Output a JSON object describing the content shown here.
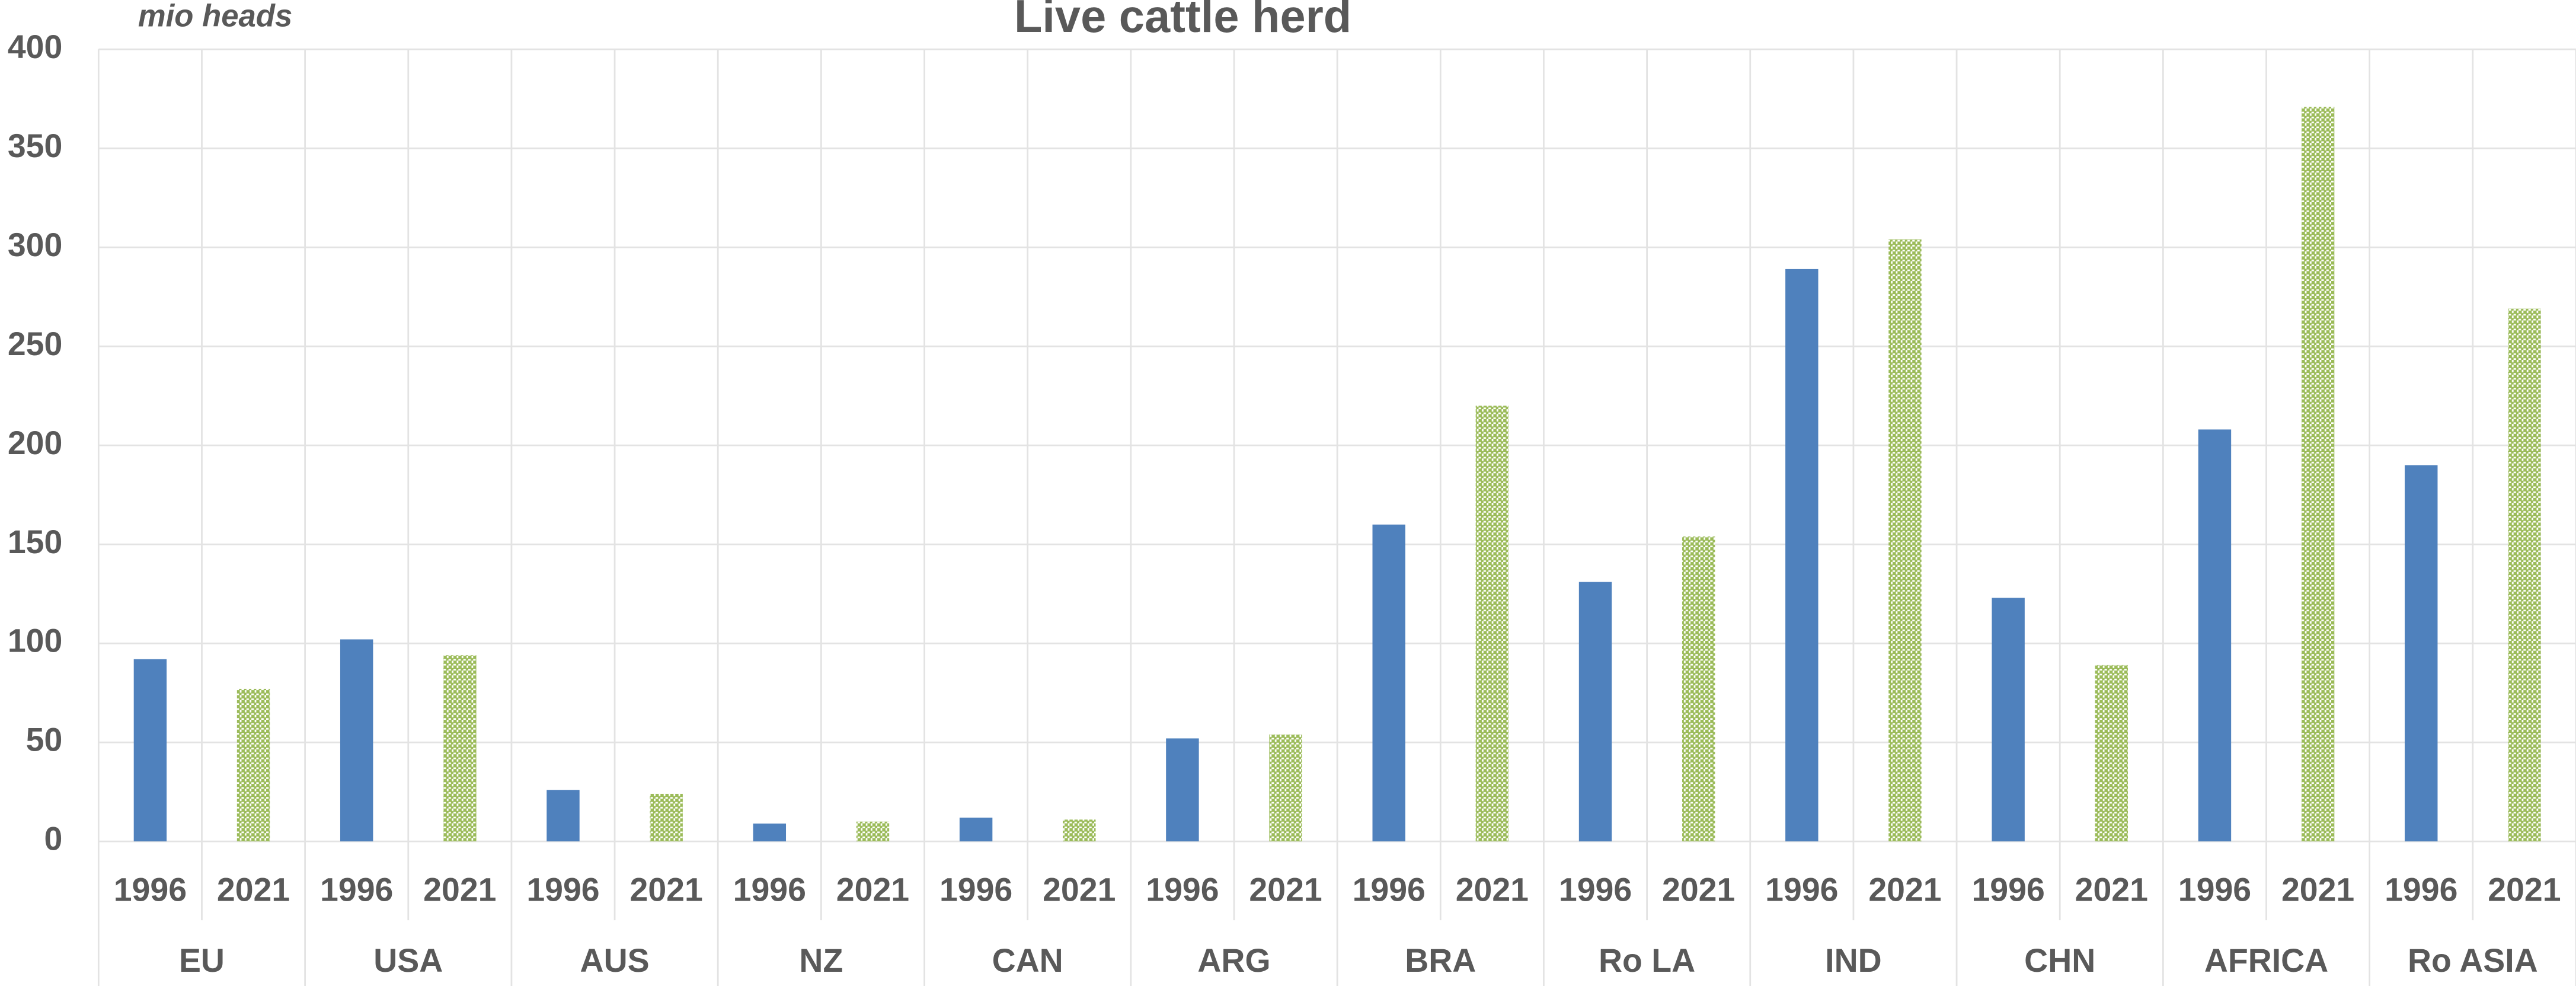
{
  "chart_data": {
    "type": "bar",
    "title": "Live cattle herd",
    "y_axis_label": "mio heads",
    "categories": [
      "EU",
      "USA",
      "AUS",
      "NZ",
      "CAN",
      "ARG",
      "BRA",
      "Ro LA",
      "IND",
      "CHN",
      "AFRICA",
      "Ro ASIA"
    ],
    "series": [
      {
        "name": "1996",
        "color": "#4f81bd",
        "fill_style": "solid",
        "values": [
          92,
          102,
          26,
          9,
          12,
          52,
          160,
          131,
          289,
          123,
          208,
          190
        ]
      },
      {
        "name": "2021",
        "color": "#9bbb59",
        "fill_style": "dotted",
        "values": [
          77,
          94,
          24,
          10,
          11,
          54,
          220,
          154,
          304,
          89,
          371,
          269
        ]
      }
    ],
    "ylim": [
      0,
      400
    ],
    "yticks": [
      0,
      50,
      100,
      150,
      200,
      250,
      300,
      350,
      400
    ],
    "grid": true
  }
}
